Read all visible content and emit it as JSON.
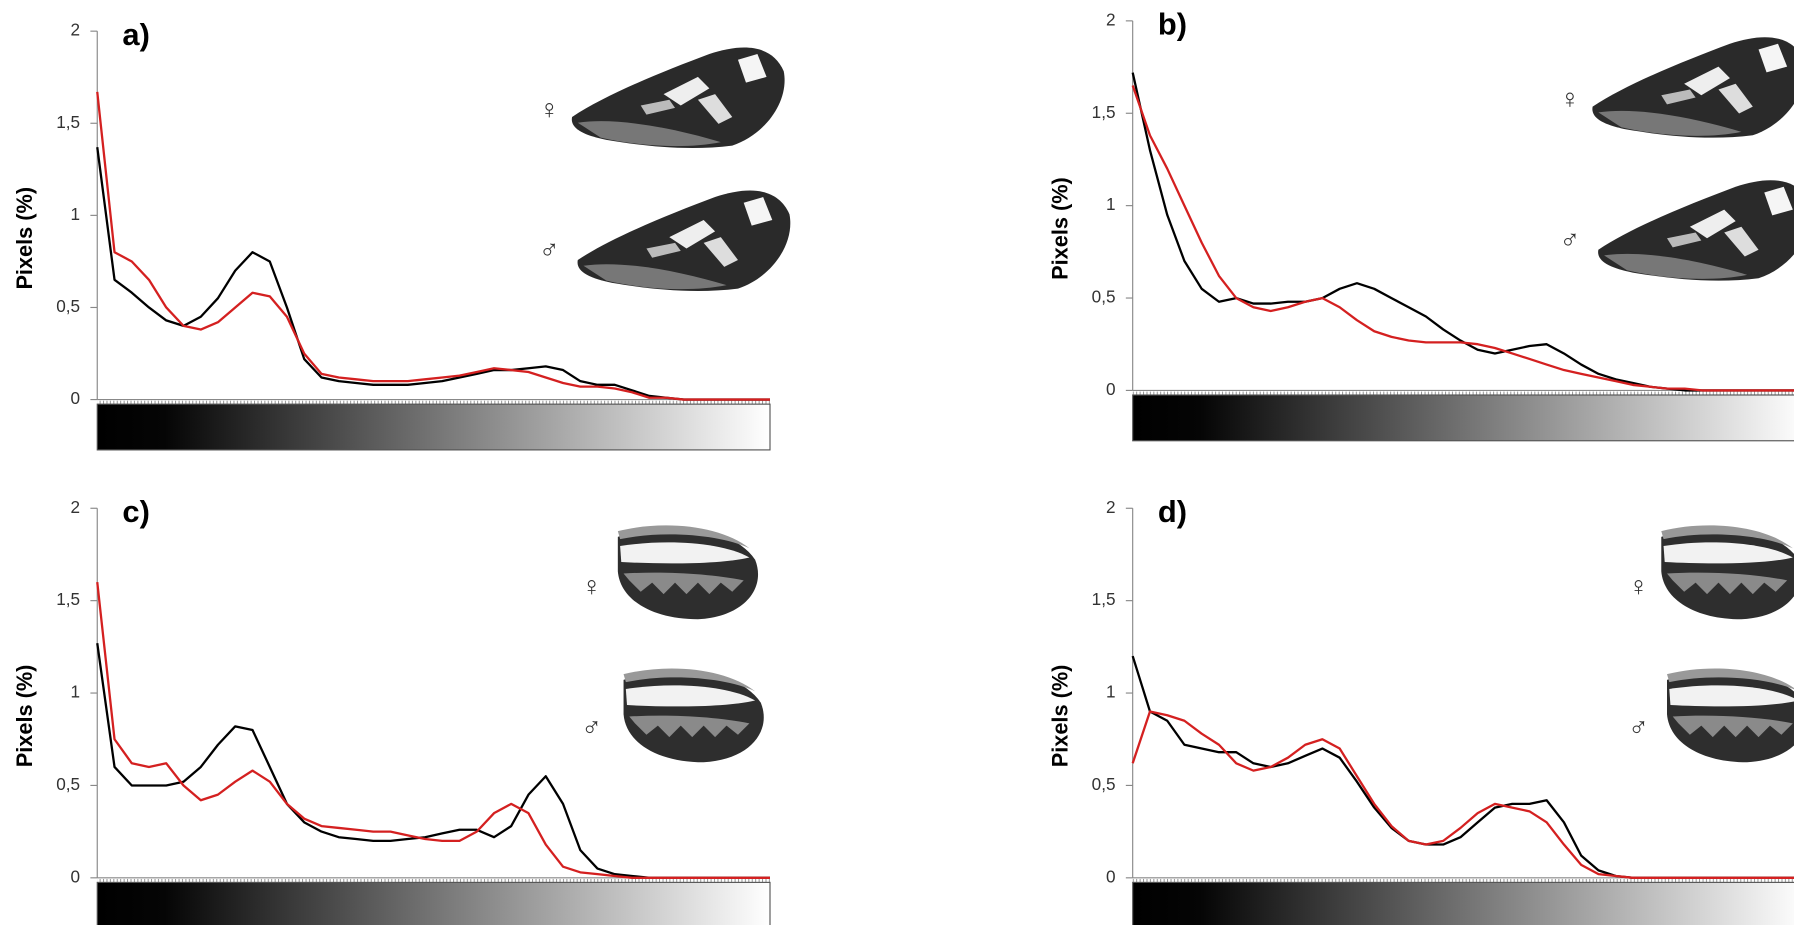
{
  "chart_data": [
    {
      "type": "line",
      "panel_label": "a)",
      "ylabel": "Pixels (%)",
      "female_label": "♀",
      "male_label": "♂",
      "ylim": [
        0,
        2
      ],
      "yticks": [
        0,
        {
          "value": 0.5,
          "label": "0,5"
        },
        1,
        {
          "value": 1.5,
          "label": "1,5"
        },
        2
      ],
      "series": [
        {
          "color": "#000000",
          "values": [
            1.37,
            0.65,
            0.58,
            0.5,
            0.43,
            0.4,
            0.45,
            0.55,
            0.7,
            0.8,
            0.75,
            0.5,
            0.22,
            0.12,
            0.1,
            0.09,
            0.08,
            0.08,
            0.08,
            0.09,
            0.1,
            0.12,
            0.14,
            0.16,
            0.16,
            0.17,
            0.18,
            0.16,
            0.1,
            0.08,
            0.08,
            0.05,
            0.02,
            0.01,
            0,
            0,
            0,
            0,
            0,
            0
          ]
        },
        {
          "color": "#d42020",
          "values": [
            1.67,
            0.8,
            0.75,
            0.65,
            0.5,
            0.4,
            0.38,
            0.42,
            0.5,
            0.58,
            0.56,
            0.45,
            0.25,
            0.14,
            0.12,
            0.11,
            0.1,
            0.1,
            0.1,
            0.11,
            0.12,
            0.13,
            0.15,
            0.17,
            0.16,
            0.15,
            0.12,
            0.09,
            0.07,
            0.07,
            0.06,
            0.04,
            0.01,
            0.01,
            0,
            0,
            0,
            0,
            0,
            0
          ]
        }
      ]
    },
    {
      "type": "line",
      "panel_label": "b)",
      "ylabel": "Pixels (%)",
      "female_label": "♀",
      "male_label": "♂",
      "ylim": [
        0,
        2
      ],
      "yticks": [
        0,
        {
          "value": 0.5,
          "label": "0,5"
        },
        1,
        {
          "value": 1.5,
          "label": "1,5"
        },
        2
      ],
      "series": [
        {
          "color": "#000000",
          "values": [
            1.72,
            1.3,
            0.95,
            0.7,
            0.55,
            0.48,
            0.5,
            0.47,
            0.47,
            0.48,
            0.48,
            0.5,
            0.55,
            0.58,
            0.55,
            0.5,
            0.45,
            0.4,
            0.33,
            0.27,
            0.22,
            0.2,
            0.22,
            0.24,
            0.25,
            0.2,
            0.14,
            0.09,
            0.06,
            0.04,
            0.02,
            0.01,
            0,
            0,
            0,
            0,
            0,
            0,
            0,
            0
          ]
        },
        {
          "color": "#d42020",
          "values": [
            1.65,
            1.38,
            1.2,
            1.0,
            0.8,
            0.62,
            0.5,
            0.45,
            0.43,
            0.45,
            0.48,
            0.5,
            0.45,
            0.38,
            0.32,
            0.29,
            0.27,
            0.26,
            0.26,
            0.26,
            0.25,
            0.23,
            0.2,
            0.17,
            0.14,
            0.11,
            0.09,
            0.07,
            0.05,
            0.03,
            0.02,
            0.01,
            0.01,
            0,
            0,
            0,
            0,
            0,
            0,
            0
          ]
        }
      ]
    },
    {
      "type": "line",
      "panel_label": "c)",
      "ylabel": "Pixels (%)",
      "female_label": "♀",
      "male_label": "♂",
      "ylim": [
        0,
        2
      ],
      "yticks": [
        0,
        {
          "value": 0.5,
          "label": "0,5"
        },
        1,
        {
          "value": 1.5,
          "label": "1,5"
        },
        2
      ],
      "series": [
        {
          "color": "#000000",
          "values": [
            1.27,
            0.6,
            0.5,
            0.5,
            0.5,
            0.52,
            0.6,
            0.72,
            0.82,
            0.8,
            0.6,
            0.4,
            0.3,
            0.25,
            0.22,
            0.21,
            0.2,
            0.2,
            0.21,
            0.22,
            0.24,
            0.26,
            0.26,
            0.22,
            0.28,
            0.45,
            0.55,
            0.4,
            0.15,
            0.05,
            0.02,
            0.01,
            0,
            0,
            0,
            0,
            0,
            0,
            0,
            0
          ]
        },
        {
          "color": "#d42020",
          "values": [
            1.6,
            0.75,
            0.62,
            0.6,
            0.62,
            0.5,
            0.42,
            0.45,
            0.52,
            0.58,
            0.52,
            0.4,
            0.32,
            0.28,
            0.27,
            0.26,
            0.25,
            0.25,
            0.23,
            0.21,
            0.2,
            0.2,
            0.25,
            0.35,
            0.4,
            0.35,
            0.18,
            0.06,
            0.03,
            0.02,
            0.01,
            0,
            0,
            0,
            0,
            0,
            0,
            0,
            0,
            0
          ]
        }
      ]
    },
    {
      "type": "line",
      "panel_label": "d)",
      "ylabel": "Pixels (%)",
      "female_label": "♀",
      "male_label": "♂",
      "ylim": [
        0,
        2
      ],
      "yticks": [
        0,
        {
          "value": 0.5,
          "label": "0,5"
        },
        1,
        {
          "value": 1.5,
          "label": "1,5"
        },
        2
      ],
      "series": [
        {
          "color": "#000000",
          "values": [
            1.2,
            0.9,
            0.85,
            0.72,
            0.7,
            0.68,
            0.68,
            0.62,
            0.6,
            0.62,
            0.66,
            0.7,
            0.65,
            0.52,
            0.38,
            0.27,
            0.2,
            0.18,
            0.18,
            0.22,
            0.3,
            0.38,
            0.4,
            0.4,
            0.42,
            0.3,
            0.12,
            0.04,
            0.01,
            0,
            0,
            0,
            0,
            0,
            0,
            0,
            0,
            0,
            0,
            0
          ]
        },
        {
          "color": "#d42020",
          "values": [
            0.62,
            0.9,
            0.88,
            0.85,
            0.78,
            0.72,
            0.62,
            0.58,
            0.6,
            0.65,
            0.72,
            0.75,
            0.7,
            0.55,
            0.4,
            0.28,
            0.2,
            0.18,
            0.2,
            0.27,
            0.35,
            0.4,
            0.38,
            0.36,
            0.3,
            0.18,
            0.07,
            0.02,
            0.01,
            0,
            0,
            0,
            0,
            0,
            0,
            0,
            0,
            0,
            0,
            0
          ]
        }
      ]
    }
  ]
}
